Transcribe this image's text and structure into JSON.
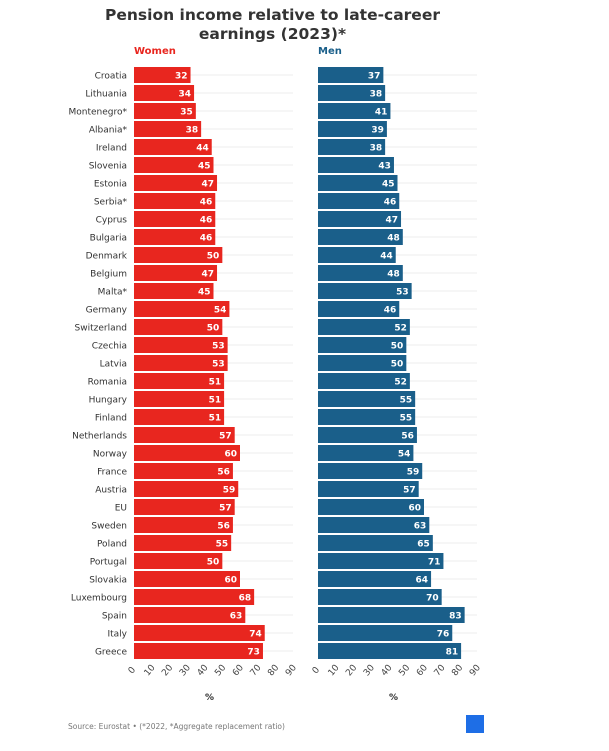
{
  "chart_data": {
    "type": "bar",
    "title": "Pension income relative to late-career earnings (2023)*",
    "categories": [
      "Croatia",
      "Lithuania",
      "Montenegro*",
      "Albania*",
      "Ireland",
      "Slovenia",
      "Estonia",
      "Serbia*",
      "Cyprus",
      "Bulgaria",
      "Denmark",
      "Belgium",
      "Malta*",
      "Germany",
      "Switzerland",
      "Czechia",
      "Latvia",
      "Romania",
      "Hungary",
      "Finland",
      "Netherlands",
      "Norway",
      "France",
      "Austria",
      "EU",
      "Sweden",
      "Poland",
      "Portugal",
      "Slovakia",
      "Luxembourg",
      "Spain",
      "Italy",
      "Greece"
    ],
    "series": [
      {
        "name": "Women",
        "color": "#e8261f",
        "values": [
          32,
          34,
          35,
          38,
          44,
          45,
          47,
          46,
          46,
          46,
          50,
          47,
          45,
          54,
          50,
          53,
          53,
          51,
          51,
          51,
          57,
          60,
          56,
          59,
          57,
          56,
          55,
          50,
          60,
          68,
          63,
          74,
          73
        ]
      },
      {
        "name": "Men",
        "color": "#1a5f8a",
        "values": [
          37,
          38,
          41,
          39,
          38,
          43,
          45,
          46,
          47,
          48,
          44,
          48,
          53,
          46,
          52,
          50,
          50,
          52,
          55,
          55,
          56,
          54,
          59,
          57,
          60,
          63,
          65,
          71,
          64,
          70,
          83,
          76,
          81
        ]
      }
    ],
    "xlabel": "%",
    "xlim": [
      0,
      90
    ],
    "xticks": [
      "0",
      "10",
      "20",
      "30",
      "40",
      "50",
      "60",
      "70",
      "80",
      "90"
    ],
    "grid": true
  },
  "footer": {
    "source": "Source: Eurostat • (*2022, *Aggregate replacement ratio)",
    "logo": "euro news."
  }
}
